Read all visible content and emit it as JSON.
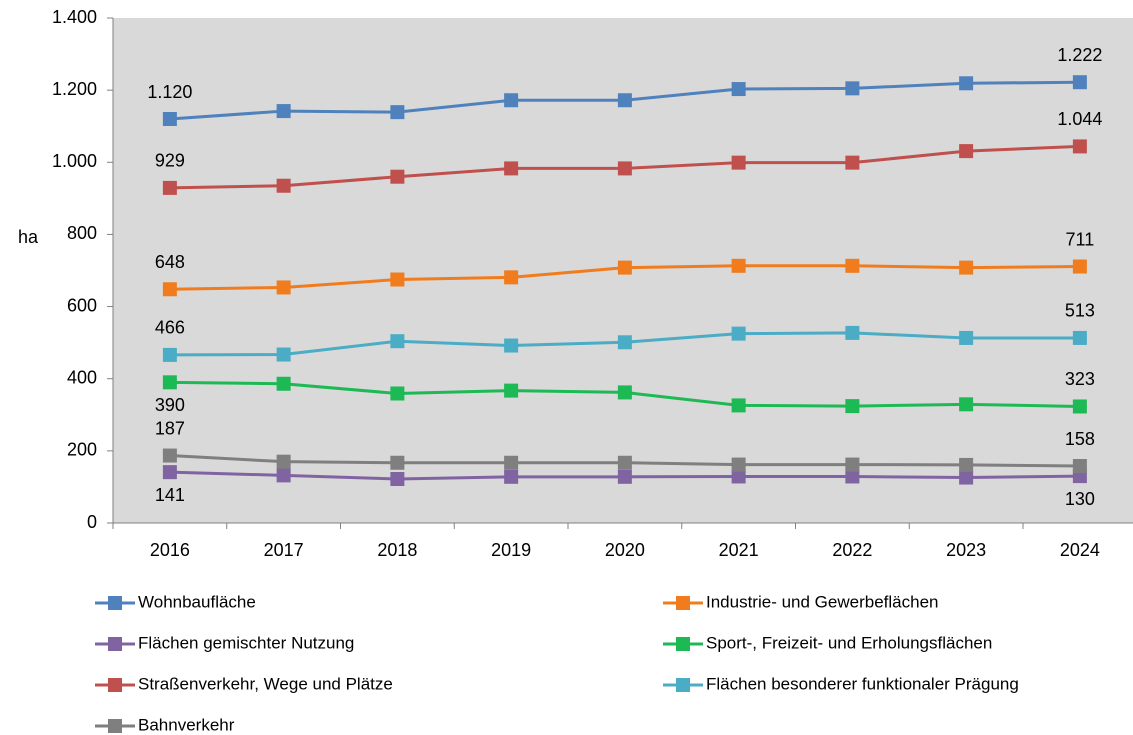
{
  "chart_data": {
    "type": "line",
    "y_label": "ha",
    "categories": [
      "2016",
      "2017",
      "2018",
      "2019",
      "2020",
      "2021",
      "2022",
      "2023",
      "2024"
    ],
    "series": [
      {
        "name": "Wohnbaufläche",
        "color": "#4f81bd",
        "values": [
          1120,
          1142,
          1139,
          1172,
          1172,
          1203,
          1205,
          1219,
          1222
        ],
        "value_labels": [
          "1.120",
          null,
          null,
          null,
          null,
          null,
          null,
          null,
          "1.222"
        ]
      },
      {
        "name": "Industrie- und Gewerbeflächen",
        "color": "#f07c1e",
        "values": [
          648,
          653,
          675,
          681,
          708,
          713,
          713,
          708,
          711
        ],
        "value_labels": [
          "648",
          null,
          null,
          null,
          null,
          null,
          null,
          null,
          "711"
        ]
      },
      {
        "name": "Flächen gemischter Nutzung",
        "color": "#8064a2",
        "values": [
          141,
          132,
          122,
          128,
          128,
          129,
          129,
          126,
          130
        ],
        "value_labels": [
          "141",
          null,
          null,
          null,
          null,
          null,
          null,
          null,
          "130"
        ]
      },
      {
        "name": "Sport-, Freizeit- und Erholungsflächen",
        "color": "#1db954",
        "values": [
          390,
          386,
          359,
          367,
          362,
          326,
          324,
          329,
          323
        ],
        "value_labels": [
          "390",
          null,
          null,
          null,
          null,
          null,
          null,
          null,
          "323"
        ]
      },
      {
        "name": "Straßenverkehr, Wege und Plätze",
        "color": "#c0504d",
        "values": [
          929,
          935,
          960,
          983,
          983,
          999,
          999,
          1031,
          1044
        ],
        "value_labels": [
          "929",
          null,
          null,
          null,
          null,
          null,
          null,
          null,
          "1.044"
        ]
      },
      {
        "name": "Flächen besonderer funktionaler Prägung",
        "color": "#4bacc6",
        "values": [
          466,
          467,
          504,
          492,
          501,
          525,
          527,
          513,
          513
        ],
        "value_labels": [
          "466",
          null,
          null,
          null,
          null,
          null,
          null,
          null,
          "513"
        ]
      },
      {
        "name": "Bahnverkehr",
        "color": "#7f7f7f",
        "values": [
          187,
          170,
          167,
          167,
          167,
          162,
          162,
          161,
          158
        ],
        "value_labels": [
          "187",
          null,
          null,
          null,
          null,
          null,
          null,
          null,
          "158"
        ]
      }
    ],
    "ylim": [
      0,
      1400
    ],
    "yticks": [
      0,
      200,
      400,
      600,
      800,
      {
        "value": 1000,
        "label": "1.000"
      },
      {
        "value": 1200,
        "label": "1.200"
      },
      {
        "value": 1400,
        "label": "1.400"
      }
    ],
    "grid": false,
    "legend": "bottom"
  }
}
